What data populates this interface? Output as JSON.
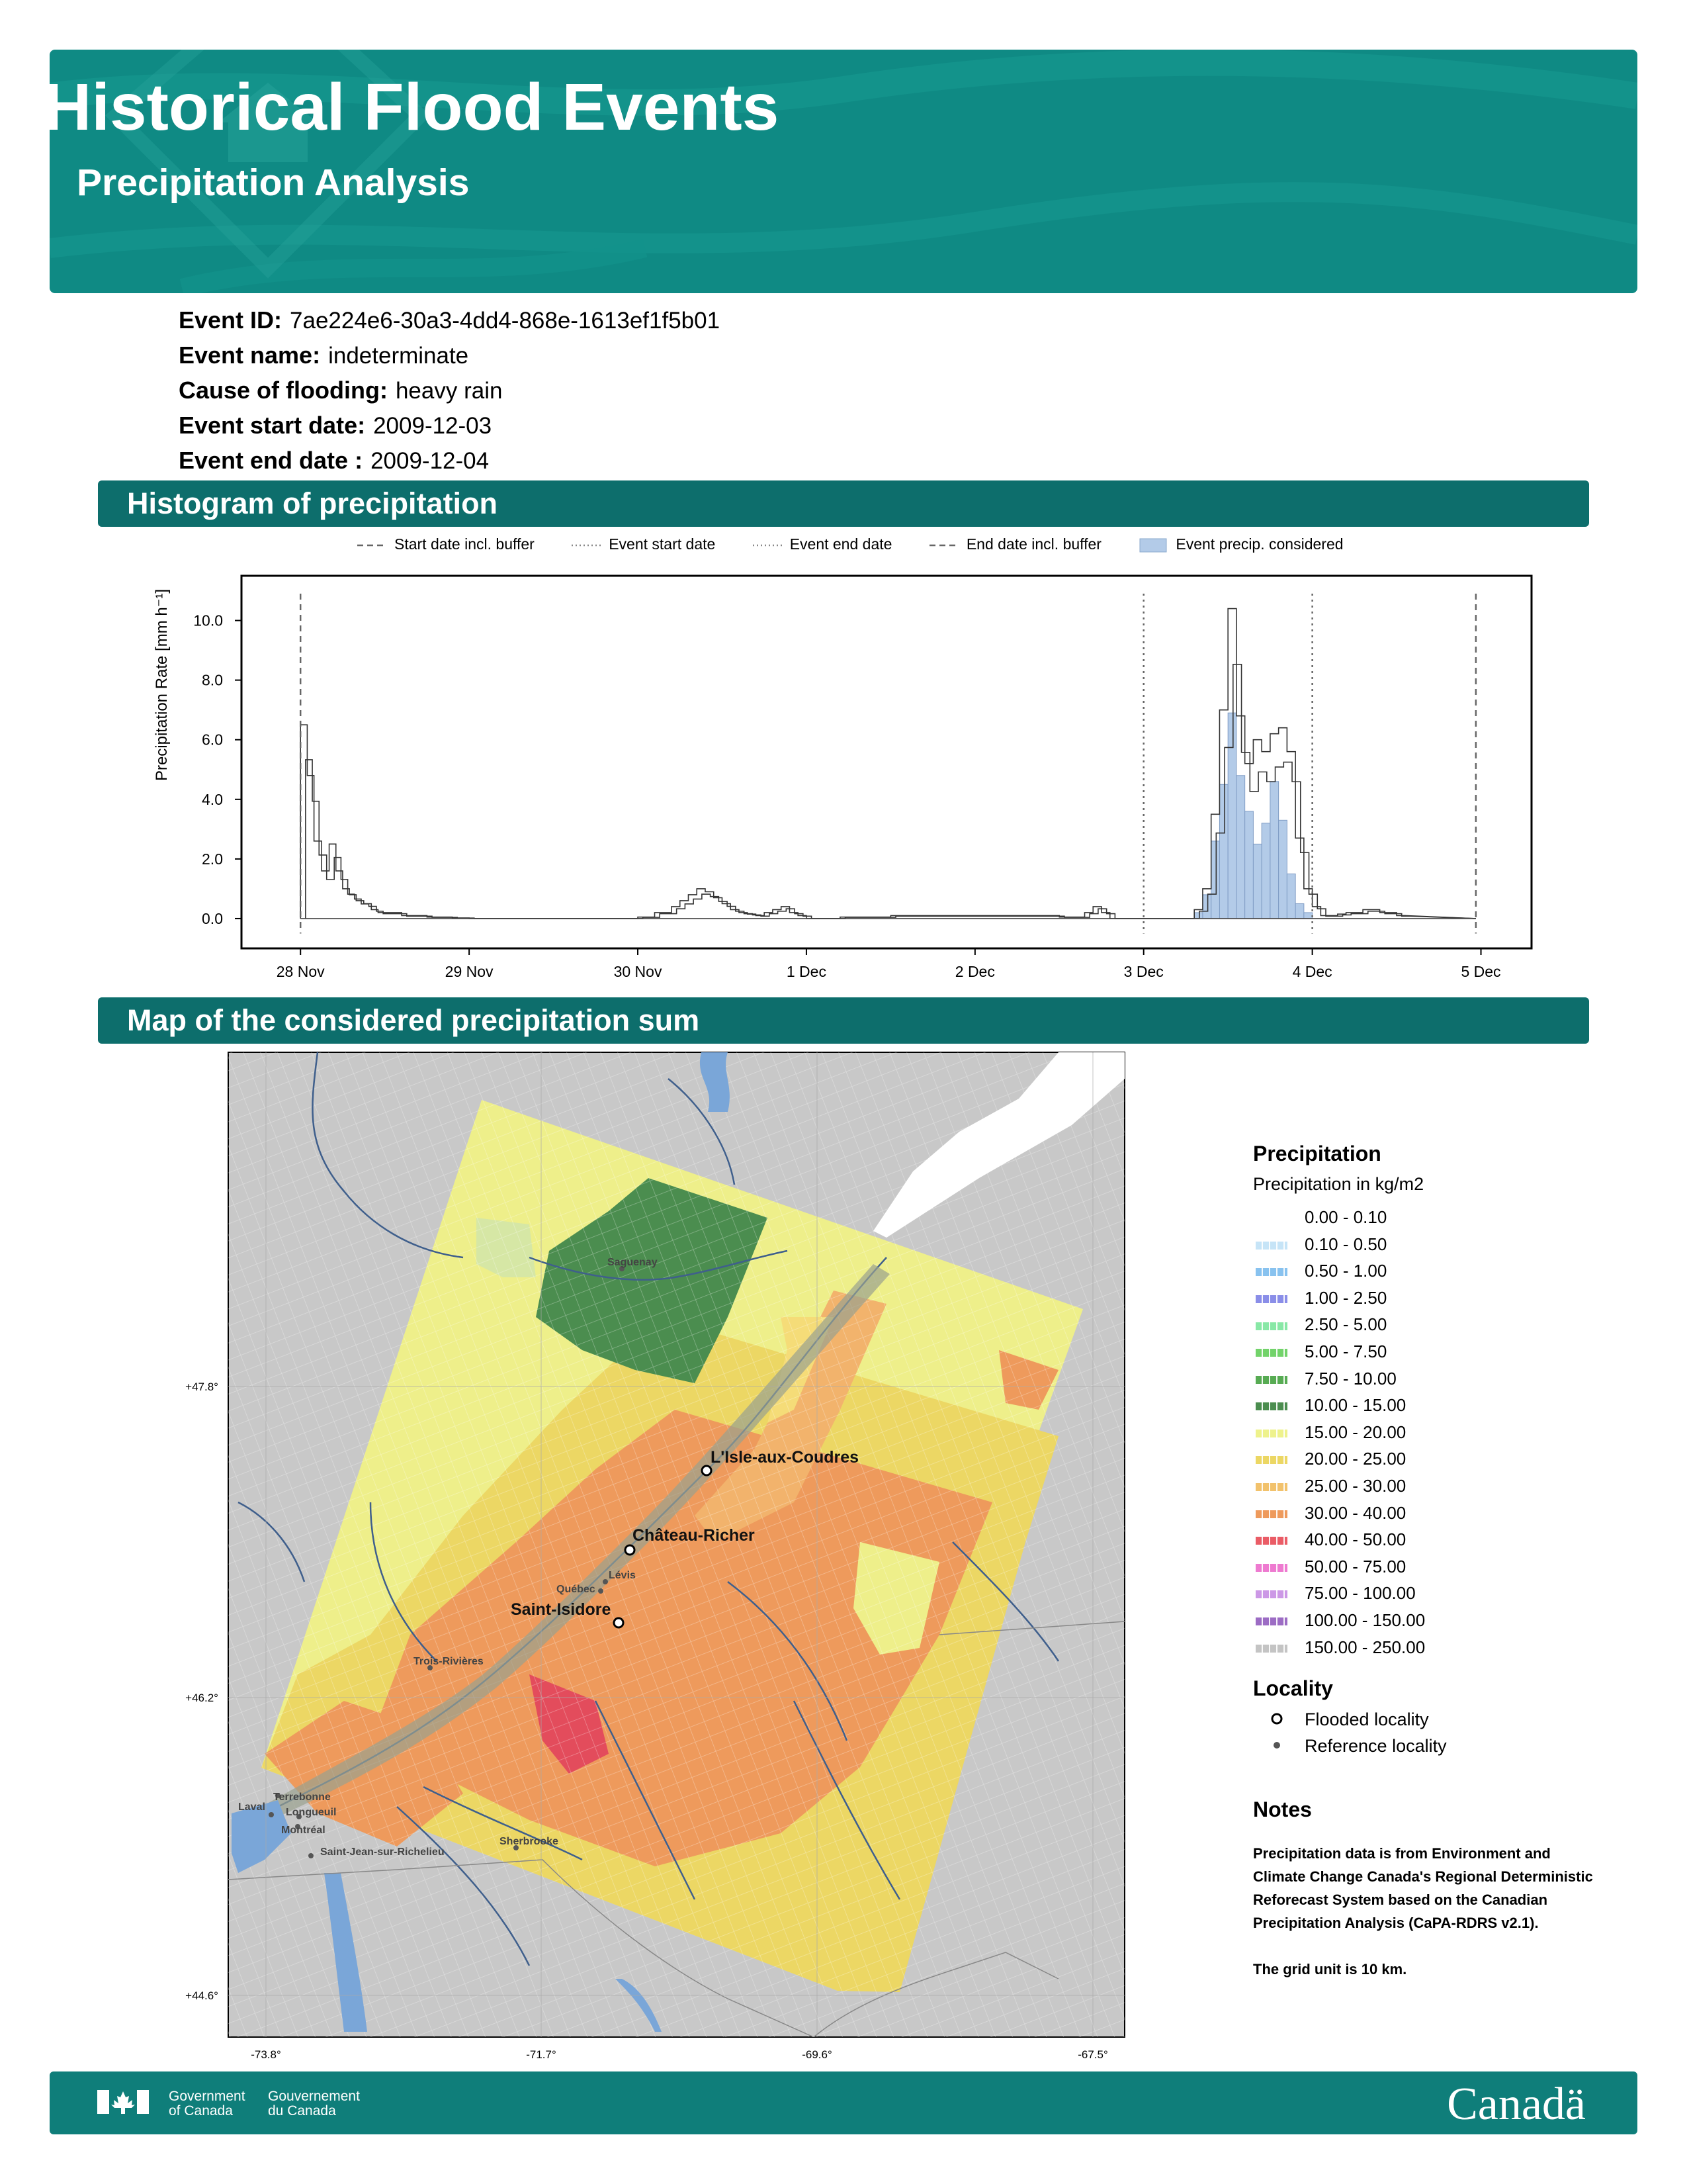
{
  "header": {
    "title": "Historical Flood Events",
    "subtitle": "Precipitation Analysis"
  },
  "event": [
    {
      "label": "Event ID:",
      "value": "7ae224e6-30a3-4dd4-868e-1613ef1f5b01"
    },
    {
      "label": "Event name:",
      "value": "indeterminate"
    },
    {
      "label": "Cause of flooding:",
      "value": "heavy rain"
    },
    {
      "label": "Event start date:",
      "value": "2009-12-03"
    },
    {
      "label": "Event end date :",
      "value": "2009-12-04"
    }
  ],
  "sections": {
    "histogram": "Histogram of precipitation",
    "map": "Map of the considered precipitation sum"
  },
  "chart_data": {
    "type": "bar",
    "legend": [
      "Start date incl. buffer",
      "Event start date",
      "Event end date",
      "End date incl. buffer",
      "Event precip. considered"
    ],
    "legend_placement": "top",
    "ylabel": "Precipitation Rate [mm h⁻¹]",
    "yticks": [
      "0.0",
      "2.0",
      "4.0",
      "6.0",
      "8.0",
      "10.0"
    ],
    "xticks": [
      "28 Nov",
      "29 Nov",
      "30 Nov",
      "1 Dec",
      "2 Dec",
      "3 Dec",
      "4 Dec",
      "5 Dec"
    ],
    "ylim": [
      -1.0,
      11.5
    ],
    "xlim": [
      -0.35,
      7.3
    ],
    "start_buffer": 0.0,
    "event_start": 5.0,
    "event_end": 6.0,
    "end_buffer": 6.97,
    "grid": false,
    "series": [
      {
        "name": "Start date incl. buffer",
        "role": "precip-series",
        "x": [
          0.0,
          0.04,
          0.08,
          0.125,
          0.17,
          0.21,
          0.25,
          0.29,
          0.33,
          0.375,
          0.42,
          0.46,
          0.5,
          0.6,
          0.75,
          0.9,
          1.0,
          1.5,
          2.0,
          2.1,
          2.2,
          2.25,
          2.3,
          2.35,
          2.4,
          2.45,
          2.5,
          2.55,
          2.6,
          2.65,
          2.7,
          2.75,
          2.8,
          2.85,
          2.9,
          2.95,
          3.0,
          3.2,
          3.5,
          4.0,
          4.5,
          4.65,
          4.7,
          4.75,
          4.8,
          4.9,
          5.0,
          5.3,
          5.35,
          5.4,
          5.45,
          5.5,
          5.55,
          5.6,
          5.65,
          5.7,
          5.75,
          5.8,
          5.85,
          5.9,
          5.95,
          6.0,
          6.05,
          6.1,
          6.15,
          6.2,
          6.3,
          6.4,
          6.5
        ],
        "values": [
          6.5,
          4.8,
          2.6,
          1.6,
          2.5,
          1.6,
          1.0,
          0.8,
          0.6,
          0.5,
          0.3,
          0.2,
          0.2,
          0.1,
          0.05,
          0.02,
          0.0,
          0.0,
          0.05,
          0.2,
          0.4,
          0.6,
          0.8,
          1.0,
          0.9,
          0.7,
          0.5,
          0.3,
          0.2,
          0.15,
          0.1,
          0.2,
          0.3,
          0.4,
          0.2,
          0.1,
          0.0,
          0.05,
          0.1,
          0.1,
          0.05,
          0.2,
          0.4,
          0.2,
          0.0,
          0.0,
          0.0,
          0.3,
          1.0,
          3.5,
          7.0,
          10.4,
          6.8,
          5.2,
          6.0,
          5.6,
          6.2,
          6.4,
          5.6,
          2.7,
          1.0,
          0.4,
          0.1,
          0.1,
          0.15,
          0.2,
          0.3,
          0.2,
          0.1
        ]
      },
      {
        "name": "Event precip. considered",
        "role": "event-series",
        "x": [
          5.3,
          5.35,
          5.4,
          5.45,
          5.5,
          5.55,
          5.6,
          5.65,
          5.7,
          5.75,
          5.8,
          5.85,
          5.9,
          5.95
        ],
        "values": [
          0.2,
          0.8,
          2.6,
          4.5,
          6.9,
          4.8,
          3.6,
          2.5,
          3.2,
          4.6,
          3.3,
          1.5,
          0.5,
          0.2
        ]
      }
    ]
  },
  "map": {
    "lat_ticks": [
      "+47.8°",
      "+46.2°",
      "+44.6°"
    ],
    "lon_ticks": [
      "-73.8°",
      "-71.7°",
      "-69.6°",
      "-67.5°"
    ],
    "flooded_localities": [
      "L'Isle-aux-Coudres",
      "Château-Richer",
      "Saint-Isidore"
    ],
    "reference_localities": [
      "Saguenay",
      "Lévis",
      "Québec",
      "Trois-Rivières",
      "Terrebonne",
      "Laval",
      "Longueuil",
      "Montréal",
      "Sherbrooke",
      "Saint-Jean-sur-Richelieu"
    ]
  },
  "legend": {
    "title": "Precipitation",
    "subtitle": "Precipitation in kg/m2",
    "bins": [
      {
        "label": "0.00 - 0.10",
        "color": "#ffffff"
      },
      {
        "label": "0.10 - 0.50",
        "color": "#c6e4f7"
      },
      {
        "label": "0.50 - 1.00",
        "color": "#88c2ef"
      },
      {
        "label": "1.00 - 2.50",
        "color": "#8a8ee8"
      },
      {
        "label": "2.50 - 5.00",
        "color": "#88e8a6"
      },
      {
        "label": "5.00 - 7.50",
        "color": "#72d36a"
      },
      {
        "label": "7.50 - 10.00",
        "color": "#57ab53"
      },
      {
        "label": "10.00 - 15.00",
        "color": "#4b8d4f"
      },
      {
        "label": "15.00 - 20.00",
        "color": "#eef28c"
      },
      {
        "label": "20.00 - 25.00",
        "color": "#ecd764"
      },
      {
        "label": "25.00 - 30.00",
        "color": "#f2c26c"
      },
      {
        "label": "30.00 - 40.00",
        "color": "#ee9a5c"
      },
      {
        "label": "40.00 - 50.00",
        "color": "#ea5c66"
      },
      {
        "label": "50.00 - 75.00",
        "color": "#ee7ad0"
      },
      {
        "label": "75.00 - 100.00",
        "color": "#cc98e6"
      },
      {
        "label": "100.00 - 150.00",
        "color": "#9c6cc4"
      },
      {
        "label": "150.00 - 250.00",
        "color": "#c4c4c4"
      }
    ],
    "locality_title": "Locality",
    "flooded": "Flooded locality",
    "reference": "Reference locality"
  },
  "notes": {
    "title": "Notes",
    "text1": "Precipitation data is from Environment and Climate Change Canada's Regional Deterministic Reforecast System based on the Canadian Precipitation Analysis (CaPA-RDRS v2.1).",
    "text2": "The grid unit is 10 km."
  },
  "footer": {
    "gov_en_1": "Government",
    "gov_en_2": "of Canada",
    "gov_fr_1": "Gouvernement",
    "gov_fr_2": "du Canada",
    "wordmark": "Canadä"
  },
  "colors": {
    "banner": "#0f8a84",
    "section_bar": "#0d6e6c",
    "footer": "#0f7e7a",
    "event_fill": "#b3cbe8"
  }
}
